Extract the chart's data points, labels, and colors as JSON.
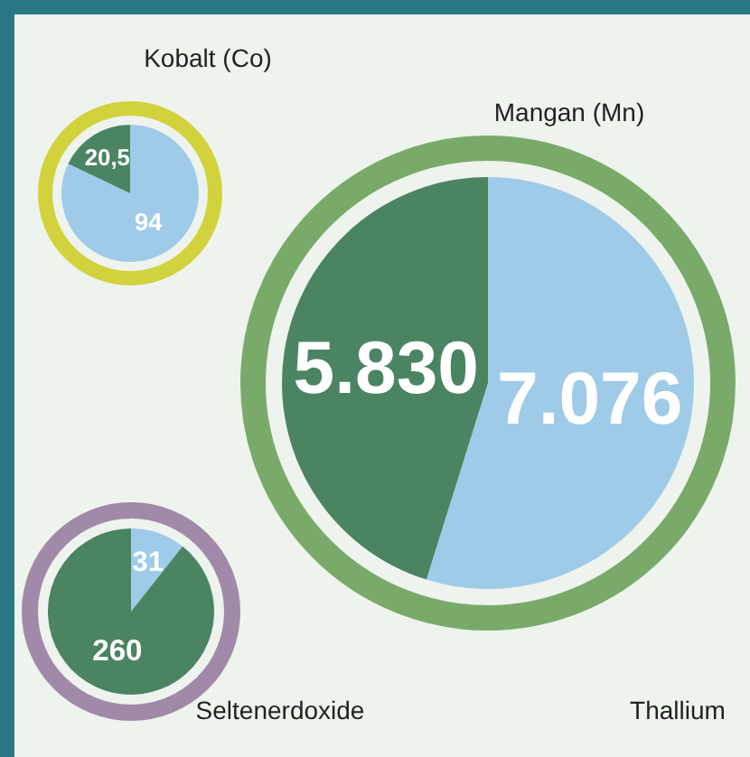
{
  "chart_data": [
    {
      "type": "pie",
      "title": "Kobalt (Co)",
      "categories": [
        null,
        null
      ],
      "values": [
        94,
        20.5
      ],
      "colors": [
        "#9fcbe8",
        "#4a8462"
      ],
      "value_labels": [
        "94",
        "20,5"
      ]
    },
    {
      "type": "pie",
      "title": "Mangan (Mn)",
      "categories": [
        null,
        null
      ],
      "values": [
        7076,
        5830
      ],
      "colors": [
        "#9fcbe8",
        "#4a8462"
      ],
      "value_labels": [
        "7.076",
        "5.830"
      ]
    },
    {
      "type": "pie",
      "title": "Seltenerdoxide",
      "categories": [
        null,
        null
      ],
      "values": [
        31,
        260
      ],
      "colors": [
        "#9fcbe8",
        "#4a8462"
      ],
      "value_labels": [
        "31",
        "260"
      ]
    },
    {
      "type": "other",
      "title": "Thallium"
    }
  ]
}
